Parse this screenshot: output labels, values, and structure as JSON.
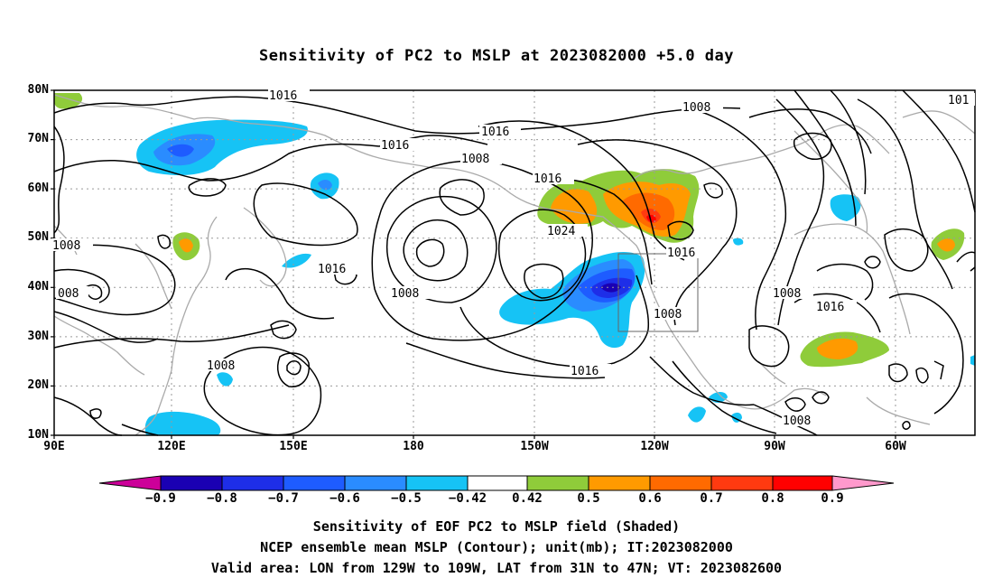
{
  "title": "Sensitivity of PC2 to MSLP at 2023082000 +5.0 day",
  "lat_labels": [
    "80N",
    "70N",
    "60N",
    "50N",
    "40N",
    "30N",
    "20N",
    "10N"
  ],
  "lon_labels": [
    "90E",
    "120E",
    "150E",
    "180",
    "150W",
    "120W",
    "90W",
    "60W"
  ],
  "contour_labels": {
    "c1": "1016",
    "c2": "1016",
    "c3": "1016",
    "c4": "1008",
    "c5": "1008",
    "c6": "1016",
    "c7": "1024",
    "c8": "1016",
    "c9": "1016",
    "c10": "1008",
    "c11": "1008",
    "c12": "1016",
    "c13": "1008",
    "c14": "1008",
    "c15": "008",
    "c16": "1008",
    "c17": "1016",
    "c18": "101",
    "c19": "1008"
  },
  "colorbar": {
    "labels": [
      "-0.9",
      "-0.8",
      "-0.7",
      "-0.6",
      "-0.5",
      "-0.42",
      "0.42",
      "0.5",
      "0.6",
      "0.7",
      "0.8",
      "0.9"
    ],
    "colors": [
      "#cc0099",
      "#1a00b3",
      "#1e2ee8",
      "#1e5cff",
      "#2a8cff",
      "#16c3f5",
      "#ffffff",
      "#8fcc3a",
      "#ff9a00",
      "#ff6a00",
      "#ff3a10",
      "#ff0000",
      "#ff99cc"
    ]
  },
  "captions": [
    "Sensitivity of EOF PC2 to MSLP field (Shaded)",
    "NCEP ensemble mean MSLP (Contour); unit(mb); IT:2023082000",
    "Valid area: LON from 129W to 109W, LAT from 31N to 47N; VT: 2023082600"
  ]
}
